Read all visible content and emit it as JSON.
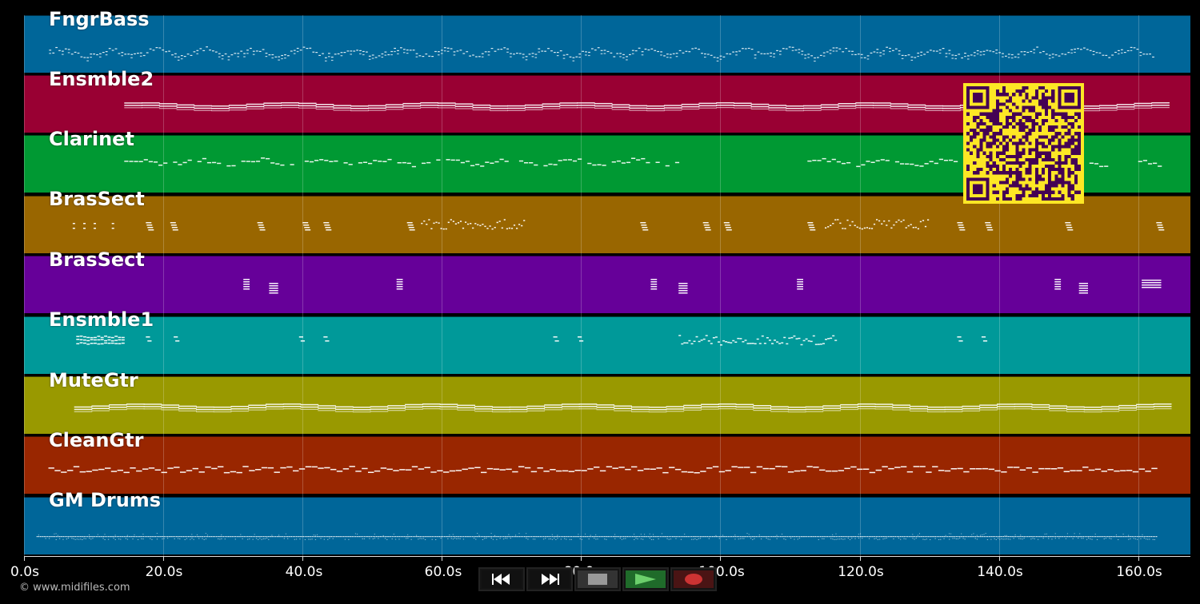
{
  "tracks": [
    {
      "name": "FngrBass",
      "color": "#006699",
      "pattern": "bass"
    },
    {
      "name": "Ensmble2",
      "color": "#990033",
      "pattern": "sustain"
    },
    {
      "name": "Clarinet",
      "color": "#009933",
      "pattern": "clarinet"
    },
    {
      "name": "BrasSect",
      "color": "#996600",
      "pattern": "brass1"
    },
    {
      "name": "BrasSect",
      "color": "#660099",
      "pattern": "brass2"
    },
    {
      "name": "Ensmble1",
      "color": "#009999",
      "pattern": "ens1"
    },
    {
      "name": "MuteGtr",
      "color": "#999900",
      "pattern": "sustain"
    },
    {
      "name": "CleanGtr",
      "color": "#992600",
      "pattern": "clean"
    },
    {
      "name": "GM Drums",
      "color": "#006699",
      "pattern": "drums"
    }
  ],
  "axis": {
    "unit": "s",
    "max_seconds": 167.5,
    "ticks": [
      "0.0s",
      "20.0s",
      "40.0s",
      "60.0s",
      "80.0s",
      "100.0s",
      "120.0s",
      "140.0s",
      "160.0s"
    ]
  },
  "copyright": "© www.midifiles.com",
  "transport": {
    "buttons": [
      {
        "name": "rewind",
        "icon": "rewind-icon"
      },
      {
        "name": "fast-forward",
        "icon": "fast-forward-icon"
      },
      {
        "name": "stop",
        "icon": "stop-icon"
      },
      {
        "name": "play",
        "icon": "play-icon"
      },
      {
        "name": "record",
        "icon": "record-icon"
      }
    ]
  },
  "qr_code": {
    "icon": "qr-code-icon",
    "colors": {
      "light": "#fde725",
      "dark": "#440154"
    }
  },
  "note_color": "#ffffff"
}
